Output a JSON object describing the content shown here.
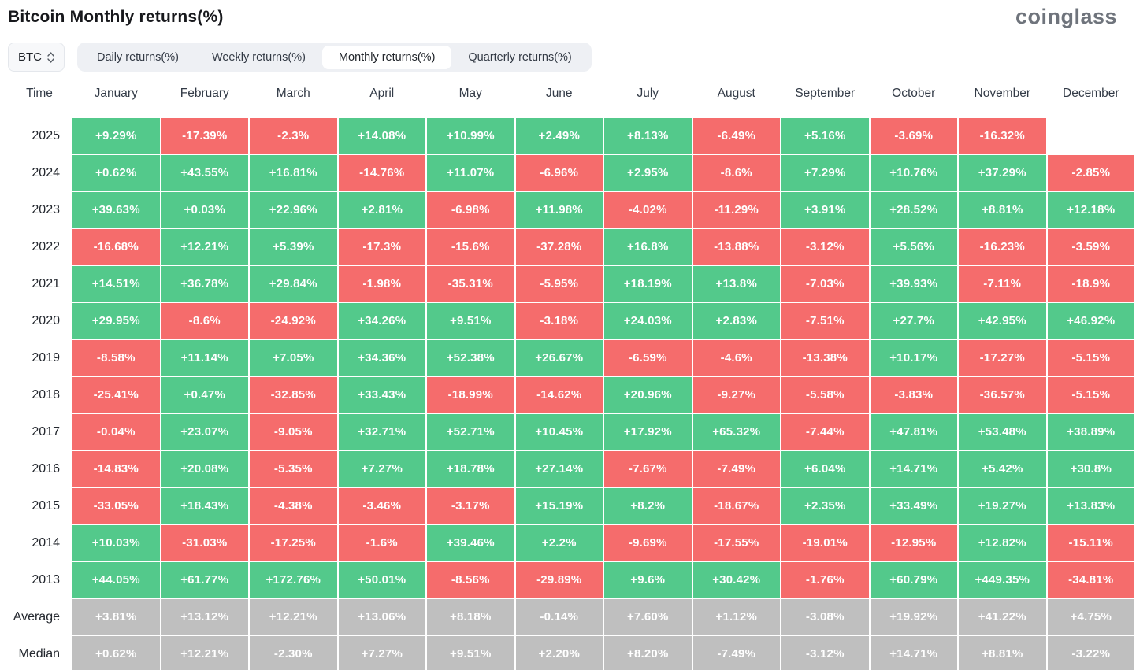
{
  "page": {
    "title": "Bitcoin Monthly returns(%)",
    "logo": "coinglass"
  },
  "controls": {
    "coin_selector": {
      "value": "BTC"
    },
    "tabs": [
      {
        "label": "Daily returns(%)",
        "active": false
      },
      {
        "label": "Weekly returns(%)",
        "active": false
      },
      {
        "label": "Monthly returns(%)",
        "active": true
      },
      {
        "label": "Quarterly returns(%)",
        "active": false
      }
    ]
  },
  "chart_data": {
    "type": "heatmap",
    "title": "Bitcoin Monthly returns(%)",
    "columns": [
      "Time",
      "January",
      "February",
      "March",
      "April",
      "May",
      "June",
      "July",
      "August",
      "September",
      "October",
      "November",
      "December"
    ],
    "colors": {
      "positive": "#53c98b",
      "negative": "#f56c6c",
      "summary": "#bfbfbf"
    },
    "rows": [
      {
        "label": "2025",
        "type": "year",
        "values": [
          "+9.29%",
          "-17.39%",
          "-2.3%",
          "+14.08%",
          "+10.99%",
          "+2.49%",
          "+8.13%",
          "-6.49%",
          "+5.16%",
          "-3.69%",
          "-16.32%",
          null
        ]
      },
      {
        "label": "2024",
        "type": "year",
        "values": [
          "+0.62%",
          "+43.55%",
          "+16.81%",
          "-14.76%",
          "+11.07%",
          "-6.96%",
          "+2.95%",
          "-8.6%",
          "+7.29%",
          "+10.76%",
          "+37.29%",
          "-2.85%"
        ]
      },
      {
        "label": "2023",
        "type": "year",
        "values": [
          "+39.63%",
          "+0.03%",
          "+22.96%",
          "+2.81%",
          "-6.98%",
          "+11.98%",
          "-4.02%",
          "-11.29%",
          "+3.91%",
          "+28.52%",
          "+8.81%",
          "+12.18%"
        ]
      },
      {
        "label": "2022",
        "type": "year",
        "values": [
          "-16.68%",
          "+12.21%",
          "+5.39%",
          "-17.3%",
          "-15.6%",
          "-37.28%",
          "+16.8%",
          "-13.88%",
          "-3.12%",
          "+5.56%",
          "-16.23%",
          "-3.59%"
        ]
      },
      {
        "label": "2021",
        "type": "year",
        "values": [
          "+14.51%",
          "+36.78%",
          "+29.84%",
          "-1.98%",
          "-35.31%",
          "-5.95%",
          "+18.19%",
          "+13.8%",
          "-7.03%",
          "+39.93%",
          "-7.11%",
          "-18.9%"
        ]
      },
      {
        "label": "2020",
        "type": "year",
        "values": [
          "+29.95%",
          "-8.6%",
          "-24.92%",
          "+34.26%",
          "+9.51%",
          "-3.18%",
          "+24.03%",
          "+2.83%",
          "-7.51%",
          "+27.7%",
          "+42.95%",
          "+46.92%"
        ]
      },
      {
        "label": "2019",
        "type": "year",
        "values": [
          "-8.58%",
          "+11.14%",
          "+7.05%",
          "+34.36%",
          "+52.38%",
          "+26.67%",
          "-6.59%",
          "-4.6%",
          "-13.38%",
          "+10.17%",
          "-17.27%",
          "-5.15%"
        ]
      },
      {
        "label": "2018",
        "type": "year",
        "values": [
          "-25.41%",
          "+0.47%",
          "-32.85%",
          "+33.43%",
          "-18.99%",
          "-14.62%",
          "+20.96%",
          "-9.27%",
          "-5.58%",
          "-3.83%",
          "-36.57%",
          "-5.15%"
        ]
      },
      {
        "label": "2017",
        "type": "year",
        "values": [
          "-0.04%",
          "+23.07%",
          "-9.05%",
          "+32.71%",
          "+52.71%",
          "+10.45%",
          "+17.92%",
          "+65.32%",
          "-7.44%",
          "+47.81%",
          "+53.48%",
          "+38.89%"
        ]
      },
      {
        "label": "2016",
        "type": "year",
        "values": [
          "-14.83%",
          "+20.08%",
          "-5.35%",
          "+7.27%",
          "+18.78%",
          "+27.14%",
          "-7.67%",
          "-7.49%",
          "+6.04%",
          "+14.71%",
          "+5.42%",
          "+30.8%"
        ]
      },
      {
        "label": "2015",
        "type": "year",
        "values": [
          "-33.05%",
          "+18.43%",
          "-4.38%",
          "-3.46%",
          "-3.17%",
          "+15.19%",
          "+8.2%",
          "-18.67%",
          "+2.35%",
          "+33.49%",
          "+19.27%",
          "+13.83%"
        ]
      },
      {
        "label": "2014",
        "type": "year",
        "values": [
          "+10.03%",
          "-31.03%",
          "-17.25%",
          "-1.6%",
          "+39.46%",
          "+2.2%",
          "-9.69%",
          "-17.55%",
          "-19.01%",
          "-12.95%",
          "+12.82%",
          "-15.11%"
        ]
      },
      {
        "label": "2013",
        "type": "year",
        "values": [
          "+44.05%",
          "+61.77%",
          "+172.76%",
          "+50.01%",
          "-8.56%",
          "-29.89%",
          "+9.6%",
          "+30.42%",
          "-1.76%",
          "+60.79%",
          "+449.35%",
          "-34.81%"
        ]
      },
      {
        "label": "Average",
        "type": "summary",
        "values": [
          "+3.81%",
          "+13.12%",
          "+12.21%",
          "+13.06%",
          "+8.18%",
          "-0.14%",
          "+7.60%",
          "+1.12%",
          "-3.08%",
          "+19.92%",
          "+41.22%",
          "+4.75%"
        ]
      },
      {
        "label": "Median",
        "type": "summary",
        "values": [
          "+0.62%",
          "+12.21%",
          "-2.30%",
          "+7.27%",
          "+9.51%",
          "+2.20%",
          "+8.20%",
          "-7.49%",
          "-3.12%",
          "+14.71%",
          "+8.81%",
          "-3.22%"
        ]
      }
    ]
  }
}
